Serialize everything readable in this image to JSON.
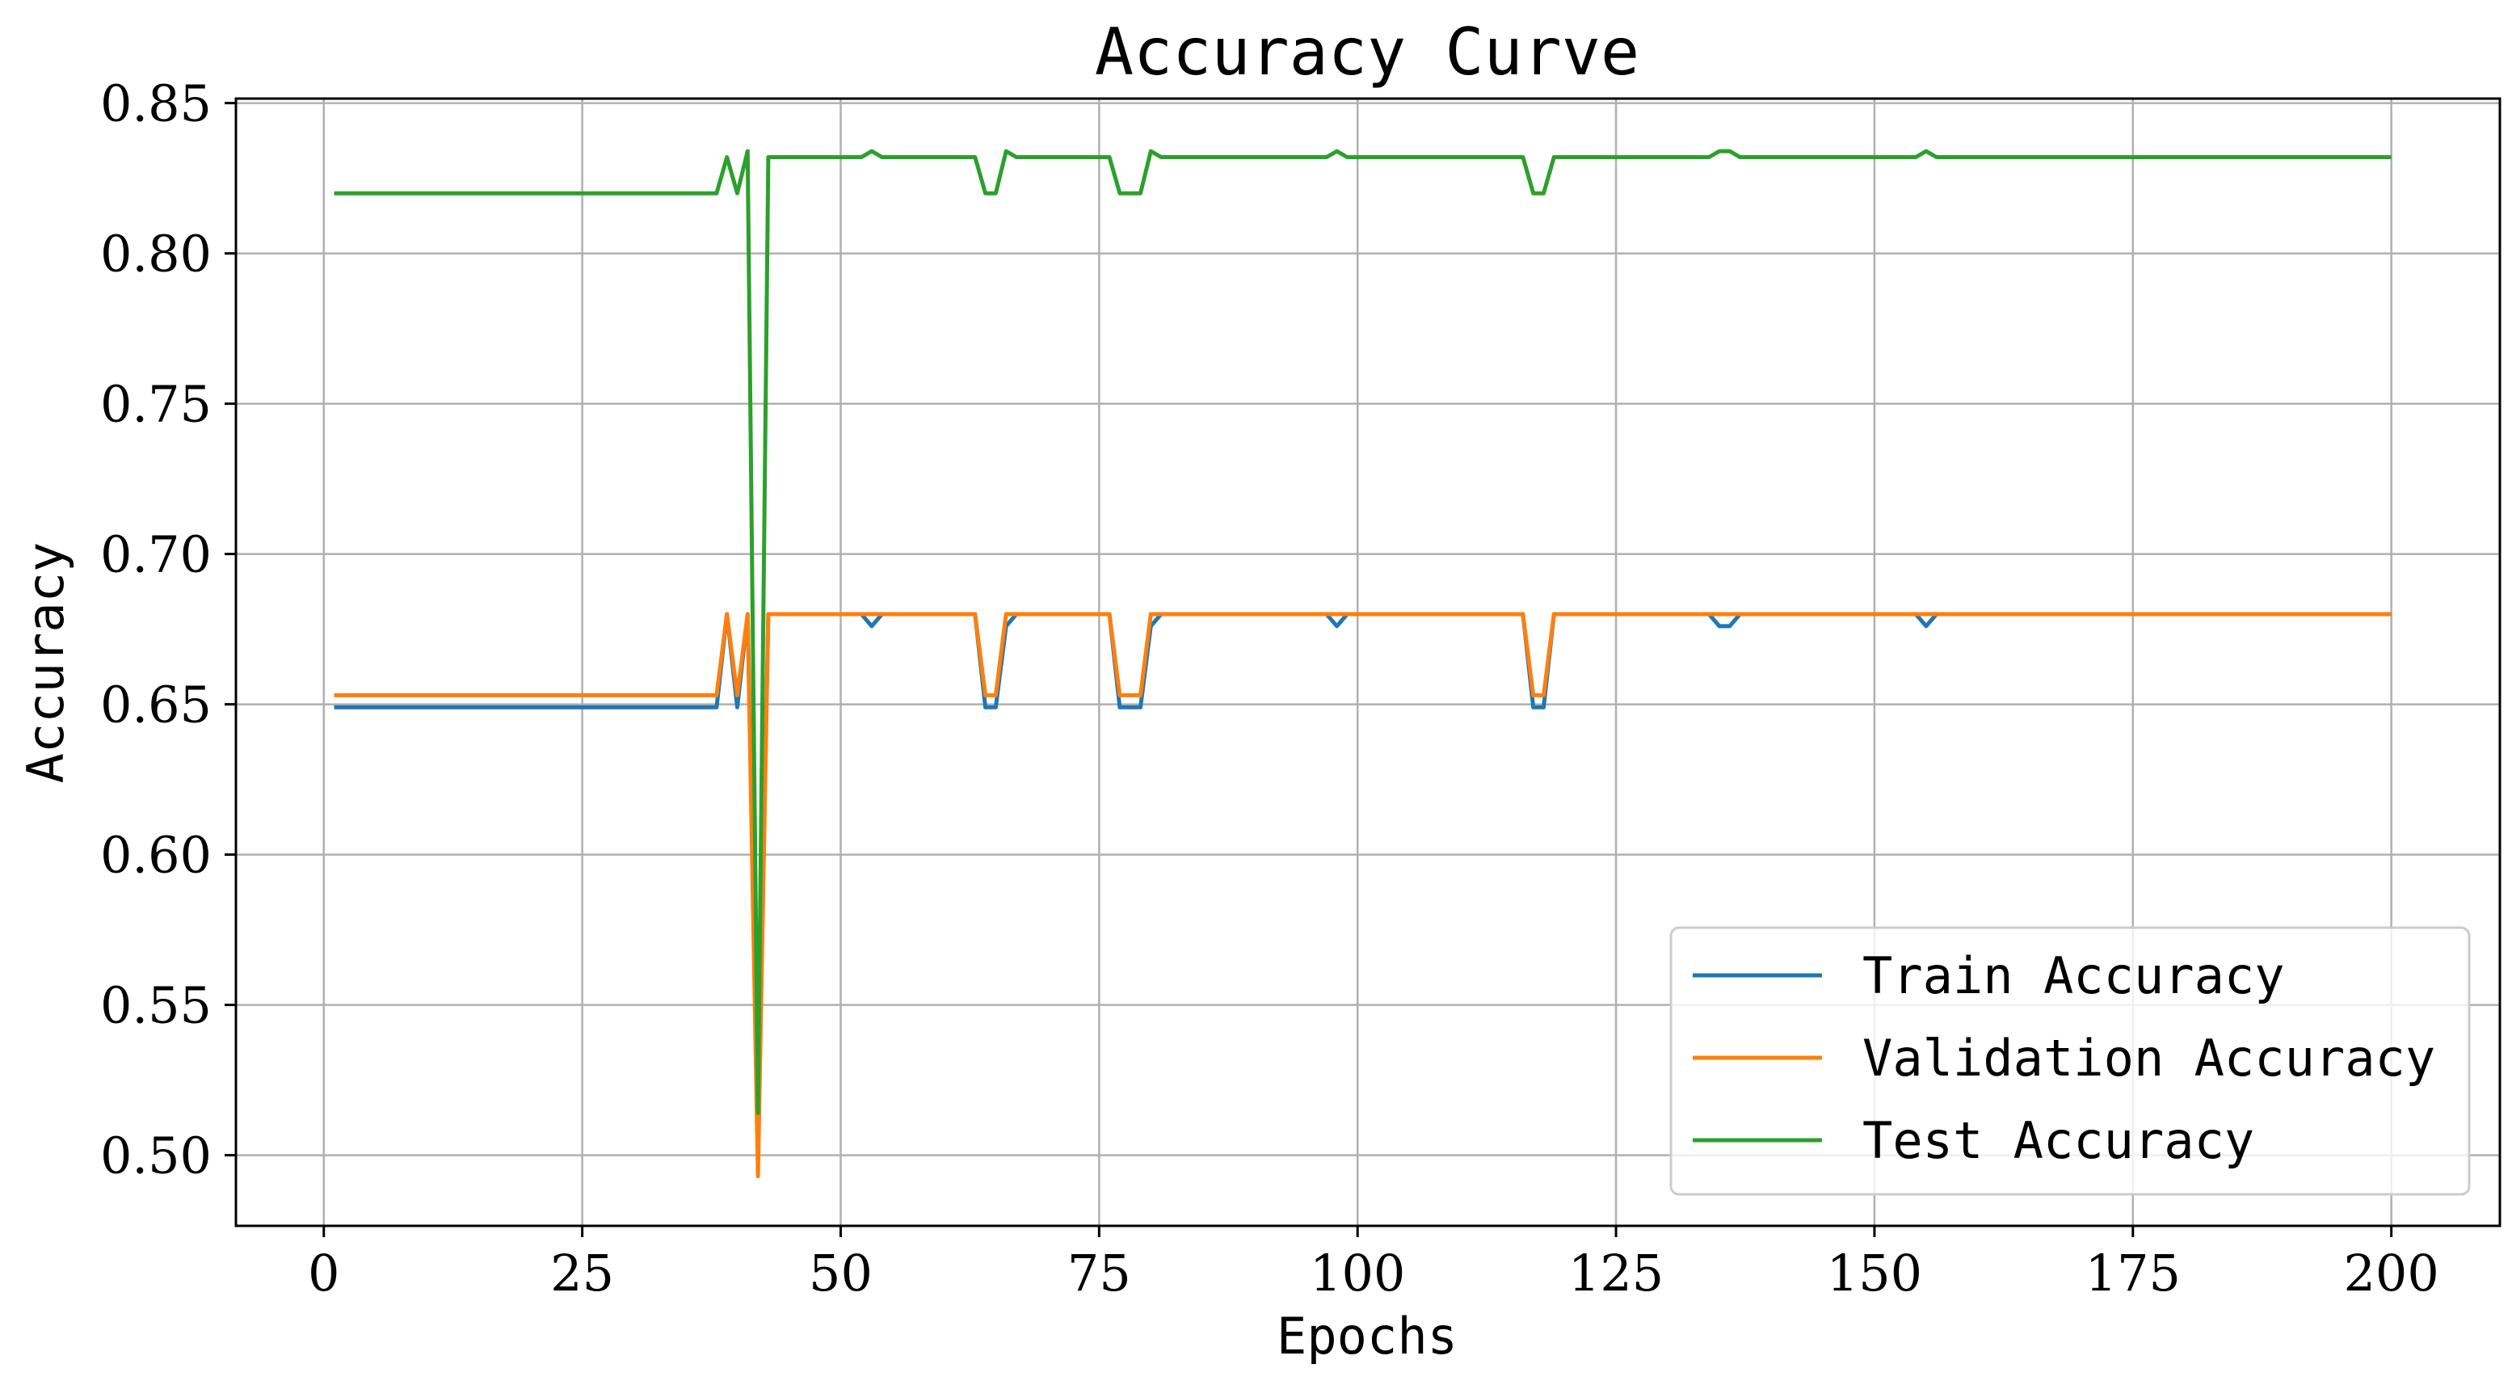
{
  "chart_data": {
    "type": "line",
    "title": "Accuracy Curve",
    "xlabel": "Epochs",
    "ylabel": "Accuracy",
    "xlim": [
      -8.5,
      210.5
    ],
    "ylim": [
      0.4765,
      0.8515
    ],
    "xticks": [
      0,
      25,
      50,
      75,
      100,
      125,
      150,
      175,
      200
    ],
    "xtick_labels": [
      "0",
      "25",
      "50",
      "75",
      "100",
      "125",
      "150",
      "175",
      "200"
    ],
    "yticks": [
      0.5,
      0.55,
      0.6,
      0.65,
      0.7,
      0.75,
      0.8,
      0.85
    ],
    "ytick_labels": [
      "0.50",
      "0.55",
      "0.60",
      "0.65",
      "0.70",
      "0.75",
      "0.80",
      "0.85"
    ],
    "grid": true,
    "legend_position": "lower-right",
    "series": [
      {
        "name": "Train Accuracy",
        "color": "#1f77b4",
        "points": [
          [
            1,
            0.649
          ],
          [
            38,
            0.649
          ],
          [
            39,
            0.68
          ],
          [
            40,
            0.649
          ],
          [
            41,
            0.68
          ],
          [
            42,
            0.514
          ],
          [
            43,
            0.68
          ],
          [
            52,
            0.68
          ],
          [
            53,
            0.676
          ],
          [
            54,
            0.68
          ],
          [
            63,
            0.68
          ],
          [
            64,
            0.649
          ],
          [
            65,
            0.649
          ],
          [
            66,
            0.676
          ],
          [
            67,
            0.68
          ],
          [
            76,
            0.68
          ],
          [
            77,
            0.649
          ],
          [
            79,
            0.649
          ],
          [
            80,
            0.676
          ],
          [
            81,
            0.68
          ],
          [
            97,
            0.68
          ],
          [
            98,
            0.676
          ],
          [
            99,
            0.68
          ],
          [
            116,
            0.68
          ],
          [
            117,
            0.649
          ],
          [
            118,
            0.649
          ],
          [
            119,
            0.68
          ],
          [
            134,
            0.68
          ],
          [
            135,
            0.676
          ],
          [
            136,
            0.676
          ],
          [
            137,
            0.68
          ],
          [
            154,
            0.68
          ],
          [
            155,
            0.676
          ],
          [
            156,
            0.68
          ],
          [
            200,
            0.68
          ]
        ]
      },
      {
        "name": "Validation Accuracy",
        "color": "#ff7f0e",
        "points": [
          [
            1,
            0.653
          ],
          [
            38,
            0.653
          ],
          [
            39,
            0.68
          ],
          [
            40,
            0.653
          ],
          [
            41,
            0.68
          ],
          [
            42,
            0.493
          ],
          [
            43,
            0.68
          ],
          [
            63,
            0.68
          ],
          [
            64,
            0.653
          ],
          [
            65,
            0.653
          ],
          [
            66,
            0.68
          ],
          [
            76,
            0.68
          ],
          [
            77,
            0.653
          ],
          [
            79,
            0.653
          ],
          [
            80,
            0.68
          ],
          [
            116,
            0.68
          ],
          [
            117,
            0.653
          ],
          [
            118,
            0.653
          ],
          [
            119,
            0.68
          ],
          [
            200,
            0.68
          ]
        ]
      },
      {
        "name": "Test Accuracy",
        "color": "#2ca02c",
        "points": [
          [
            1,
            0.82
          ],
          [
            38,
            0.82
          ],
          [
            39,
            0.832
          ],
          [
            40,
            0.82
          ],
          [
            41,
            0.834
          ],
          [
            42,
            0.514
          ],
          [
            43,
            0.832
          ],
          [
            52,
            0.832
          ],
          [
            53,
            0.834
          ],
          [
            54,
            0.832
          ],
          [
            63,
            0.832
          ],
          [
            64,
            0.82
          ],
          [
            65,
            0.82
          ],
          [
            66,
            0.834
          ],
          [
            67,
            0.832
          ],
          [
            76,
            0.832
          ],
          [
            77,
            0.82
          ],
          [
            79,
            0.82
          ],
          [
            80,
            0.834
          ],
          [
            81,
            0.832
          ],
          [
            97,
            0.832
          ],
          [
            98,
            0.834
          ],
          [
            99,
            0.832
          ],
          [
            116,
            0.832
          ],
          [
            117,
            0.82
          ],
          [
            118,
            0.82
          ],
          [
            119,
            0.832
          ],
          [
            134,
            0.832
          ],
          [
            135,
            0.834
          ],
          [
            136,
            0.834
          ],
          [
            137,
            0.832
          ],
          [
            154,
            0.832
          ],
          [
            155,
            0.834
          ],
          [
            156,
            0.832
          ],
          [
            200,
            0.832
          ]
        ]
      }
    ]
  }
}
